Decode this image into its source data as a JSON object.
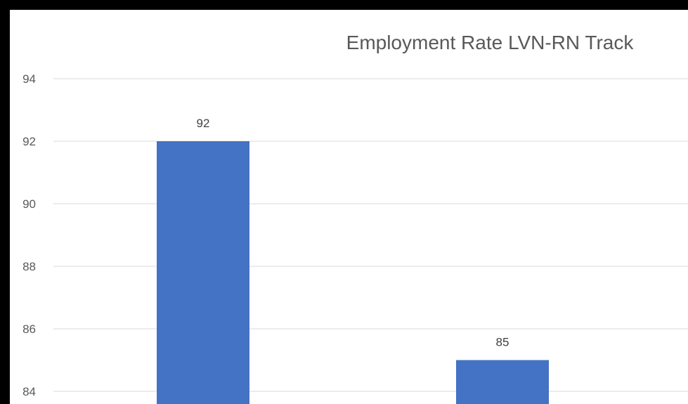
{
  "chart_data": {
    "type": "bar",
    "title": "Employment Rate LVN-RN Track",
    "categories": [
      "",
      ""
    ],
    "series": [
      {
        "values": [
          92,
          85
        ]
      }
    ],
    "data_labels": [
      "92",
      "85"
    ],
    "y_ticks": [
      "94",
      "92",
      "90",
      "88",
      "86",
      "84"
    ],
    "ylim": [
      83.5,
      95
    ],
    "y_tick_values": [
      94,
      92,
      90,
      88,
      86,
      84
    ],
    "grid": true,
    "colors": {
      "bar": "#4472C4",
      "grid": "#D9D9D9",
      "frame": "#000000",
      "text": "#595959"
    }
  }
}
